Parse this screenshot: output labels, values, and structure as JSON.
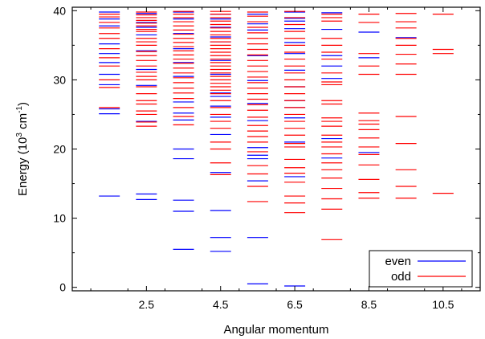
{
  "chart_data": {
    "type": "scatter",
    "title": "",
    "xlabel": "Angular momentum",
    "ylabel_main": "Energy (10",
    "ylabel_sup1": "3",
    "ylabel_mid": " cm",
    "ylabel_sup2": "-1",
    "ylabel_end": ")",
    "xlim": [
      0.5,
      11.5
    ],
    "ylim": [
      -0.5,
      40.5
    ],
    "xticks": [
      2.5,
      4.5,
      6.5,
      8.5,
      10.5
    ],
    "xtick_labels": [
      "2.5",
      "4.5",
      "6.5",
      "8.5",
      "10.5"
    ],
    "yticks": [
      0,
      10,
      20,
      30,
      40
    ],
    "ytick_labels": [
      "0",
      "10",
      "20",
      "30",
      "40"
    ],
    "legend_position": "bottom-right",
    "colors": {
      "even": "#0000ff",
      "odd": "#ff0000"
    },
    "series": [
      {
        "name": "even",
        "levels": [
          {
            "j": 1.5,
            "e": [
              13.2,
              25.1,
              25.8,
              29.3,
              30.8,
              32.5,
              33.8,
              35.2,
              37.8,
              38.8,
              39.8
            ]
          },
          {
            "j": 2.5,
            "e": [
              12.7,
              13.5,
              24.0,
              29.2,
              31.5,
              34.2,
              36.5,
              37.6,
              38.3,
              39.6
            ]
          },
          {
            "j": 3.5,
            "e": [
              5.5,
              11.0,
              12.6,
              18.6,
              20.0,
              24.2,
              25.2,
              26.8,
              30.5,
              32.5,
              34.5,
              36.7,
              38.8,
              39.8
            ]
          },
          {
            "j": 4.5,
            "e": [
              5.2,
              7.2,
              11.1,
              16.6,
              22.1,
              24.6,
              26.2,
              27.6,
              28.1,
              30.8,
              32.8,
              35.5,
              36.2,
              37.6,
              38.8,
              39.5
            ]
          },
          {
            "j": 5.5,
            "e": [
              0.5,
              7.2,
              15.4,
              18.6,
              19.1,
              20.2,
              24.1,
              26.6,
              29.9,
              33.5,
              37.2,
              38.1,
              39.5
            ]
          },
          {
            "j": 6.5,
            "e": [
              0.2,
              16.0,
              21.0,
              24.5,
              26.0,
              27.0,
              29.0,
              31.4,
              33.8,
              35.4,
              37.4,
              38.5,
              38.9,
              39.8
            ]
          },
          {
            "j": 7.5,
            "e": [
              18.7,
              21.5,
              30.2,
              32.0,
              33.5,
              37.3,
              39.7
            ]
          },
          {
            "j": 8.5,
            "e": [
              19.5,
              33.2,
              36.9
            ]
          },
          {
            "j": 9.5,
            "e": [
              36.1
            ]
          }
        ]
      },
      {
        "name": "odd",
        "levels": [
          {
            "j": 1.5,
            "e": [
              26.0,
              28.9,
              30.0,
              32.0,
              33.2,
              34.5,
              36.0,
              36.7,
              37.5,
              38.3,
              39.1,
              39.5
            ]
          },
          {
            "j": 2.5,
            "e": [
              23.3,
              23.9,
              25.0,
              25.5,
              26.5,
              27.0,
              28.0,
              29.0,
              30.0,
              30.5,
              31.1,
              32.0,
              32.8,
              33.5,
              34.1,
              35.0,
              35.5,
              36.0,
              37.0,
              37.3,
              37.8,
              38.2,
              38.6,
              39.0,
              39.4,
              39.8
            ]
          },
          {
            "j": 3.5,
            "e": [
              23.5,
              24.7,
              26.0,
              27.3,
              28.1,
              28.8,
              29.6,
              30.3,
              31.0,
              31.7,
              32.4,
              33.0,
              33.6,
              34.2,
              34.8,
              35.4,
              36.0,
              36.6,
              37.2,
              37.8,
              38.4,
              39.0,
              39.5,
              39.9
            ]
          },
          {
            "j": 4.5,
            "e": [
              16.3,
              18.0,
              20.0,
              21.0,
              23.0,
              24.0,
              25.0,
              26.0,
              27.0,
              28.0,
              28.5,
              29.0,
              29.5,
              30.0,
              30.5,
              31.0,
              31.5,
              32.0,
              32.5,
              33.0,
              33.5,
              34.0,
              34.5,
              35.0,
              35.5,
              36.0,
              36.5,
              37.0,
              37.5,
              38.0,
              38.5,
              39.0,
              39.5,
              39.9
            ]
          },
          {
            "j": 5.5,
            "e": [
              12.4,
              14.6,
              16.4,
              17.6,
              19.6,
              21.0,
              21.8,
              22.6,
              23.4,
              24.6,
              25.6,
              26.4,
              27.2,
              28.0,
              28.8,
              29.6,
              30.4,
              31.2,
              32.0,
              32.8,
              33.6,
              34.4,
              35.2,
              36.0,
              36.8,
              37.6,
              38.4,
              39.2,
              39.8
            ]
          },
          {
            "j": 6.5,
            "e": [
              10.8,
              12.2,
              13.2,
              15.2,
              16.5,
              17.3,
              18.5,
              20.3,
              20.8,
              22.0,
              23.0,
              24.0,
              25.0,
              26.0,
              27.0,
              28.0,
              29.0,
              30.0,
              31.0,
              32.0,
              33.0,
              34.0,
              35.0,
              36.0,
              37.0,
              38.0,
              39.0,
              39.9
            ]
          },
          {
            "j": 7.5,
            "e": [
              6.9,
              11.3,
              12.8,
              14.3,
              15.8,
              17.0,
              18.0,
              19.3,
              20.3,
              21.0,
              22.0,
              23.3,
              24.0,
              24.5,
              26.5,
              27.0,
              29.3,
              29.7,
              31.0,
              33.0,
              34.0,
              35.0,
              36.0,
              38.5,
              39.0,
              39.5
            ]
          },
          {
            "j": 8.5,
            "e": [
              12.9,
              13.7,
              15.6,
              17.7,
              19.2,
              20.3,
              21.6,
              22.8,
              23.6,
              24.1,
              25.2,
              30.8,
              32.0,
              33.8,
              38.3,
              39.5
            ]
          },
          {
            "j": 9.5,
            "e": [
              12.9,
              14.6,
              17.0,
              20.8,
              24.7,
              30.8,
              32.3,
              33.7,
              35.0,
              36.0,
              37.5,
              38.4,
              39.6
            ]
          },
          {
            "j": 10.5,
            "e": [
              13.6,
              33.8,
              34.4,
              39.5
            ]
          }
        ]
      }
    ]
  }
}
